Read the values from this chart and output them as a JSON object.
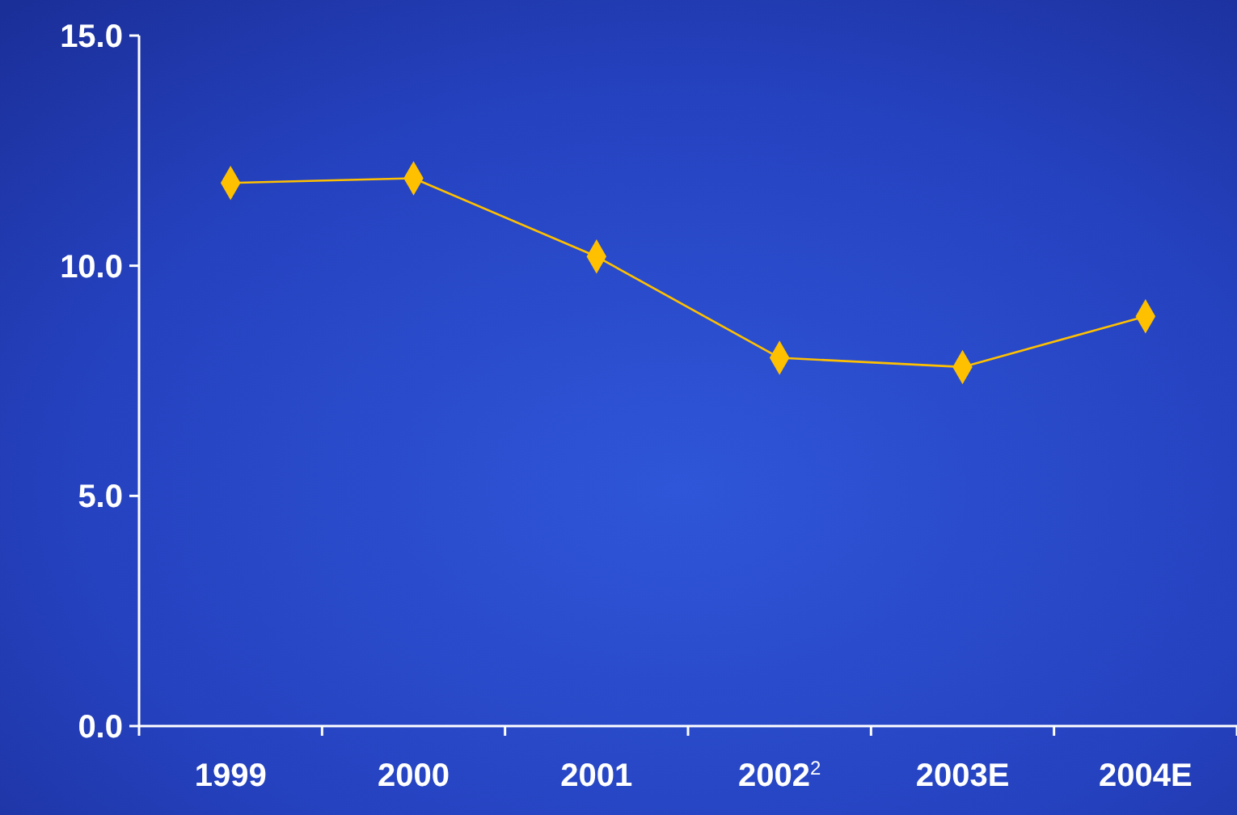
{
  "chart_data": {
    "type": "line",
    "categories": [
      "1999",
      "2000",
      "2001",
      "2002$^{2}$",
      "2003E",
      "2004E"
    ],
    "series": [
      {
        "color": "#ffc000",
        "values": [
          11.8,
          11.9,
          10.2,
          8.0,
          7.8,
          8.9
        ]
      }
    ],
    "ylim": [
      0,
      15
    ],
    "yticks": [
      {
        "value": 0,
        "label": "0.0"
      },
      {
        "value": 5,
        "label": "5.0"
      },
      {
        "value": 10,
        "label": "10.0"
      },
      {
        "value": 15,
        "label": "15.0"
      }
    ],
    "marker": "diamond",
    "grid": false
  }
}
